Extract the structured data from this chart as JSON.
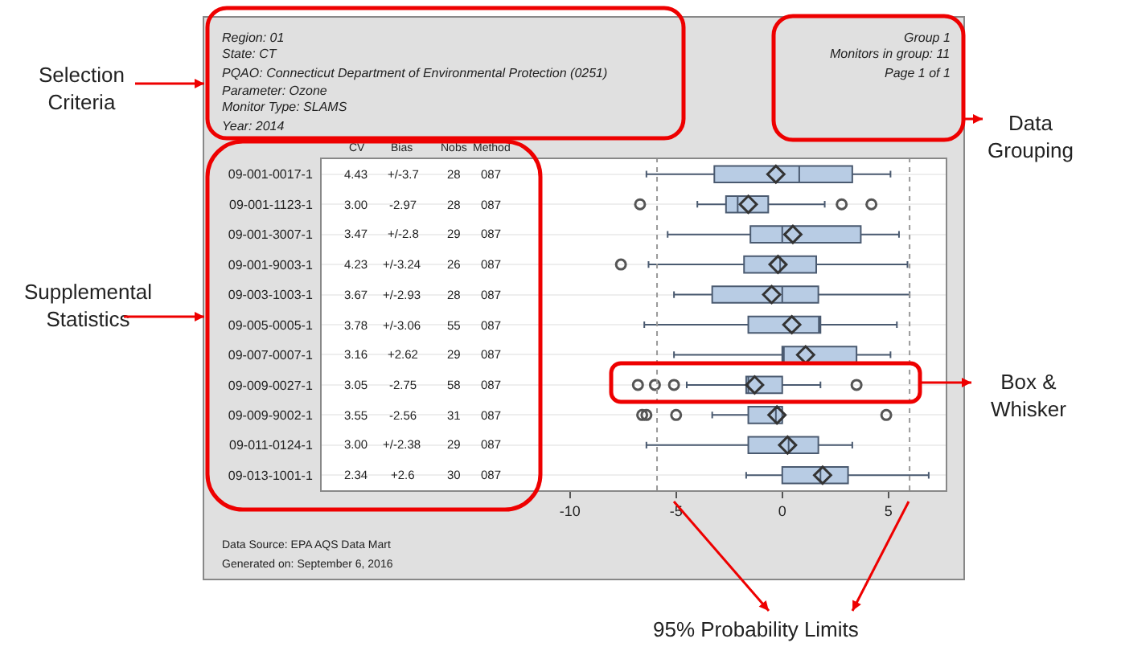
{
  "chart_data": {
    "type": "box",
    "categories": [
      "09-001-0017-1",
      "09-001-1123-1",
      "09-001-3007-1",
      "09-001-9003-1",
      "09-003-1003-1",
      "09-005-0005-1",
      "09-007-0007-1",
      "09-009-0027-1",
      "09-009-9002-1",
      "09-011-0124-1",
      "09-013-1001-1"
    ],
    "series": [
      {
        "color": "#b8cce4",
        "boxes": [
          {
            "low": -6.4,
            "q1": -3.2,
            "median": 0.8,
            "q3": 3.3,
            "high": 5.1,
            "mean": -0.3
          },
          {
            "low": -4.0,
            "q1": -2.65,
            "median": -2.1,
            "q3": -0.66,
            "high": 2.0,
            "mean": -1.6,
            "outliers": [
              -6.7,
              2.8,
              4.2
            ]
          },
          {
            "low": -5.4,
            "q1": -1.5,
            "median": 0.0,
            "q3": 3.7,
            "high": 5.5,
            "mean": 0.5
          },
          {
            "low": -6.3,
            "q1": -1.8,
            "median": -0.1,
            "q3": 1.6,
            "high": 5.9,
            "mean": -0.2,
            "outliers": [
              -7.6
            ]
          },
          {
            "low": -5.1,
            "q1": -3.3,
            "median": 0.0,
            "q3": 1.7,
            "high": 6.0,
            "mean": -0.5
          },
          {
            "low": -6.5,
            "q1": -1.6,
            "median": 1.8,
            "q3": 1.8,
            "high": 5.4,
            "mean": 0.45
          },
          {
            "low": -5.1,
            "q1": 0.0,
            "median": 0.0,
            "q3": 3.5,
            "high": 5.1,
            "mean": 1.1
          },
          {
            "low": -4.5,
            "q1": -1.7,
            "median": -1.6,
            "q3": 0.0,
            "high": 1.8,
            "mean": -1.3,
            "outliers": [
              -6.8,
              -6.0,
              -5.1,
              3.5
            ]
          },
          {
            "low": -3.3,
            "q1": -1.6,
            "median": -0.3,
            "q3": 0.0,
            "high": 0.0,
            "mean": -0.25,
            "outliers": [
              -6.6,
              -6.4,
              -5.0,
              4.9
            ]
          },
          {
            "low": -6.4,
            "q1": -1.6,
            "median": 0.3,
            "q3": 1.7,
            "high": 3.3,
            "mean": 0.25
          },
          {
            "low": -1.7,
            "q1": 0.0,
            "median": 1.8,
            "q3": 3.1,
            "high": 6.9,
            "mean": 1.9
          }
        ]
      }
    ],
    "orientation": "horizontal",
    "xlim": [
      -21.7,
      7.7
    ],
    "xticks": [
      -10,
      -5,
      0,
      5
    ],
    "grid": "y",
    "ref_lines": [
      {
        "axis": "x",
        "value": -5.9,
        "color": "#999999",
        "line_style": "dotted"
      },
      {
        "axis": "x",
        "value": 6.0,
        "color": "#999999",
        "line_style": "dotted"
      }
    ],
    "annotations": [
      "Region: 01",
      "State: CT",
      "PQAO: Connecticut Department of Environmental Protection (0251)",
      "Parameter: Ozone",
      "Monitor Type: SLAMS",
      "Year: 2014",
      "Group 1",
      "Monitors in group: 11",
      "Page 1 of 1",
      "CV",
      "Bias",
      "Nobs",
      "Method",
      "Data Source: EPA AQS Data Mart",
      "Generated on: September 6, 2016",
      "Selection\nCriteria",
      "Supplemental\nStatistics",
      "Data\nGrouping",
      "Box &\nWhisker",
      "95% Probability Limits",
      "4.43",
      "+/-3.7",
      "28",
      "087",
      "3.00",
      "-2.97",
      "28",
      "087",
      "3.47",
      "+/-2.8",
      "29",
      "087",
      "4.23",
      "+/-3.24",
      "26",
      "087",
      "3.67",
      "+/-2.93",
      "28",
      "087",
      "3.78",
      "+/-3.06",
      "55",
      "087",
      "3.16",
      "+2.62",
      "29",
      "087",
      "3.05",
      "-2.75",
      "58",
      "087",
      "3.55",
      "-2.56",
      "31",
      "087",
      "3.00",
      "+/-2.38",
      "29",
      "087",
      "2.34",
      "+2.6",
      "30",
      "087"
    ]
  }
}
